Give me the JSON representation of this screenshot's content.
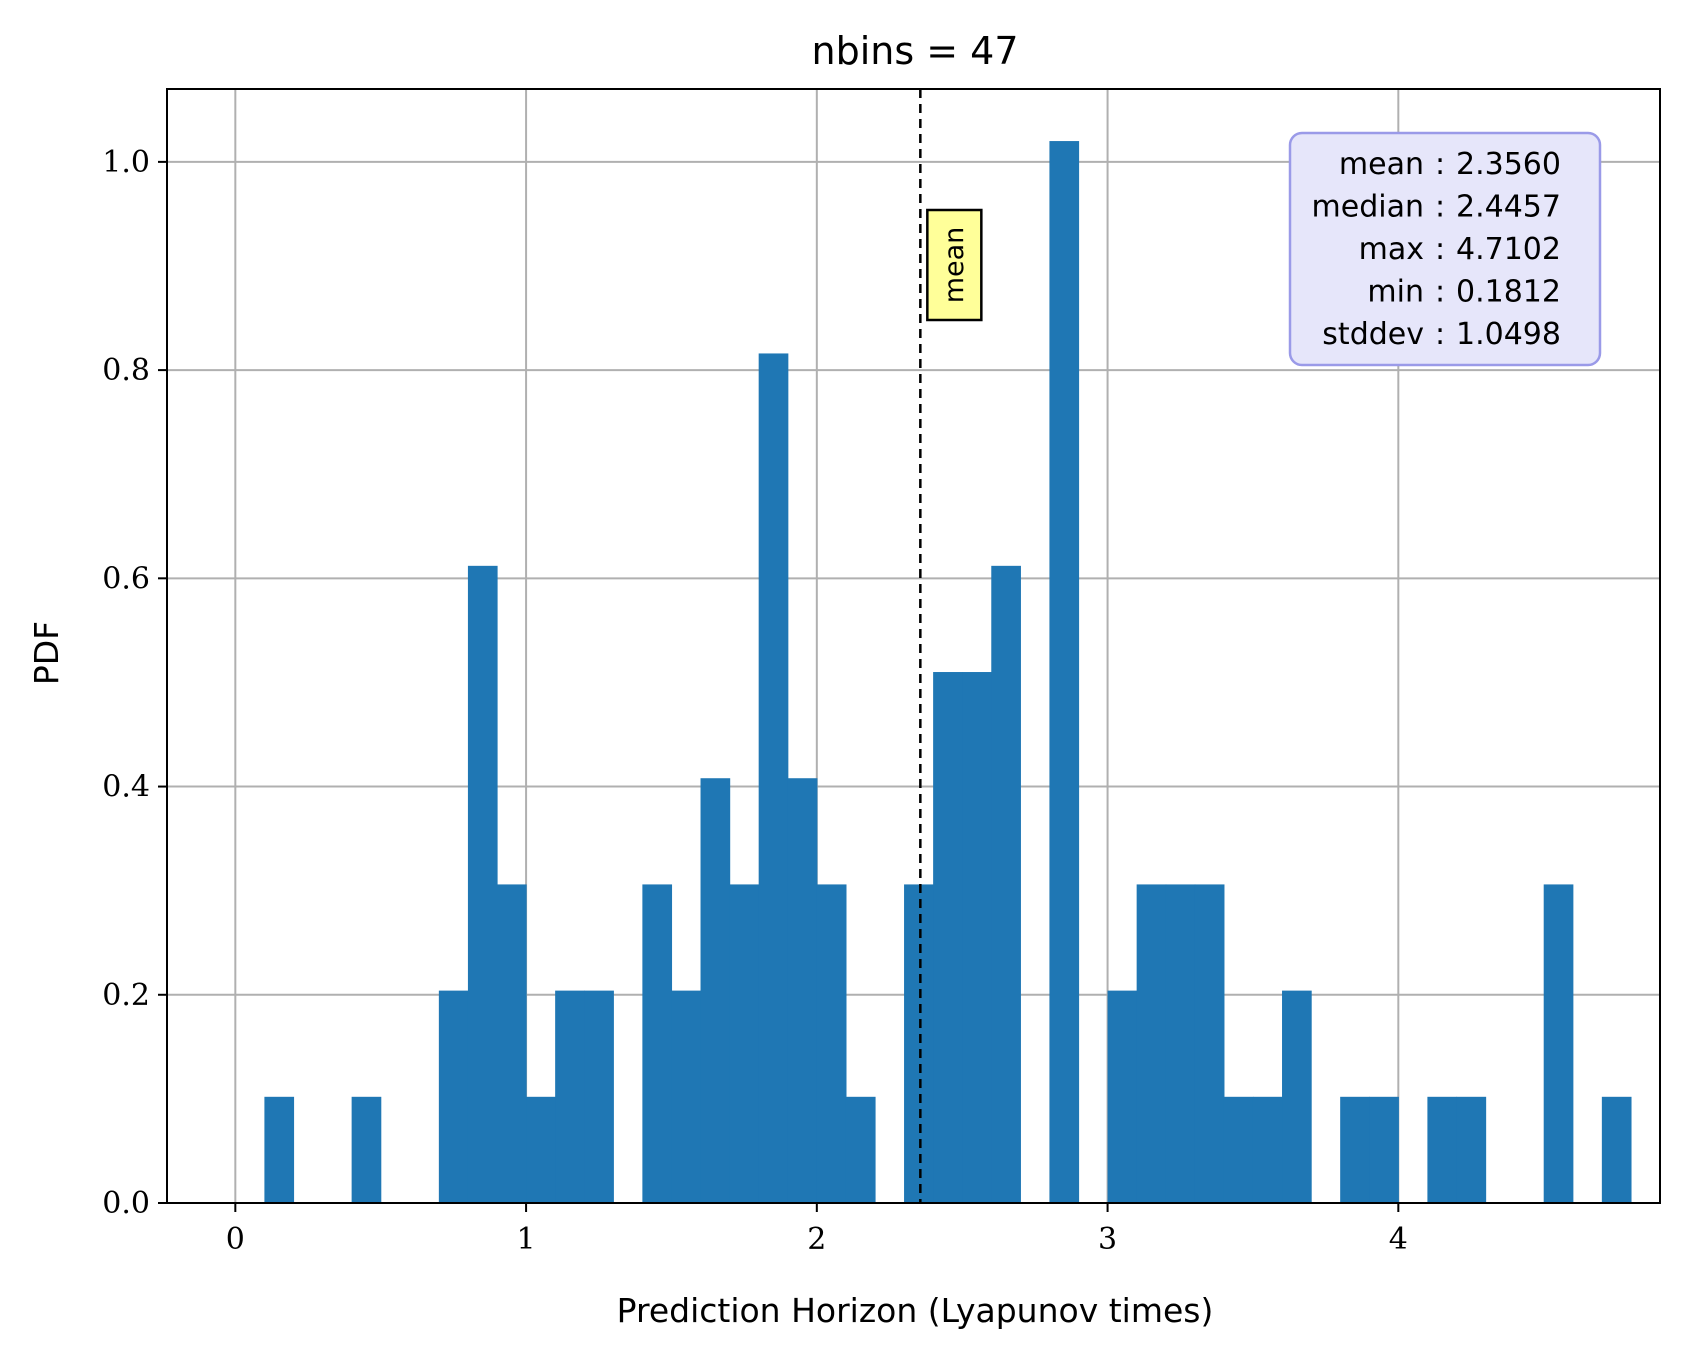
{
  "chart_data": {
    "type": "bar",
    "subtype": "histogram",
    "title": "nbins = 47",
    "xlabel": "Prediction Horizon (Lyapunov times)",
    "ylabel": "PDF",
    "xlim": [
      -0.235,
      4.9
    ],
    "ylim": [
      0,
      1.07
    ],
    "xticks": [
      0,
      1,
      2,
      3,
      4
    ],
    "xtick_labels": [
      "0",
      "1",
      "2",
      "3",
      "4"
    ],
    "yticks": [
      0.0,
      0.2,
      0.4,
      0.6,
      0.8,
      1.0
    ],
    "ytick_labels": [
      "0.0",
      "0.2",
      "0.4",
      "0.6",
      "0.8",
      "1.0"
    ],
    "grid": true,
    "bar_color": "#1f77b4",
    "bins": {
      "start": 0.1,
      "width": 0.1,
      "values": [
        0.102,
        0,
        0,
        0.102,
        0,
        0,
        0.204,
        0.612,
        0.306,
        0.102,
        0.204,
        0.204,
        0,
        0.306,
        0.204,
        0.408,
        0.306,
        0.816,
        0.408,
        0.306,
        0.102,
        0,
        0.306,
        0.51,
        0.51,
        0.612,
        0,
        1.02,
        0,
        0.204,
        0.306,
        0.306,
        0.306,
        0.102,
        0.102,
        0.204,
        0,
        0.102,
        0.102,
        0,
        0.102,
        0.102,
        0,
        0,
        0.306,
        0,
        0.102
      ]
    },
    "mean_line": {
      "x": 2.356,
      "style": "dashed",
      "color": "#000000",
      "label": "mean",
      "label_bg": "#ffff99"
    },
    "stats_box": {
      "bg": "#e6e6fa",
      "border": "#9a9ae8",
      "rows": [
        {
          "name": "mean",
          "value": "2.3560"
        },
        {
          "name": "median",
          "value": "2.4457"
        },
        {
          "name": "max",
          "value": "4.7102"
        },
        {
          "name": "min",
          "value": "0.1812"
        },
        {
          "name": "stddev",
          "value": "1.0498"
        }
      ]
    }
  }
}
